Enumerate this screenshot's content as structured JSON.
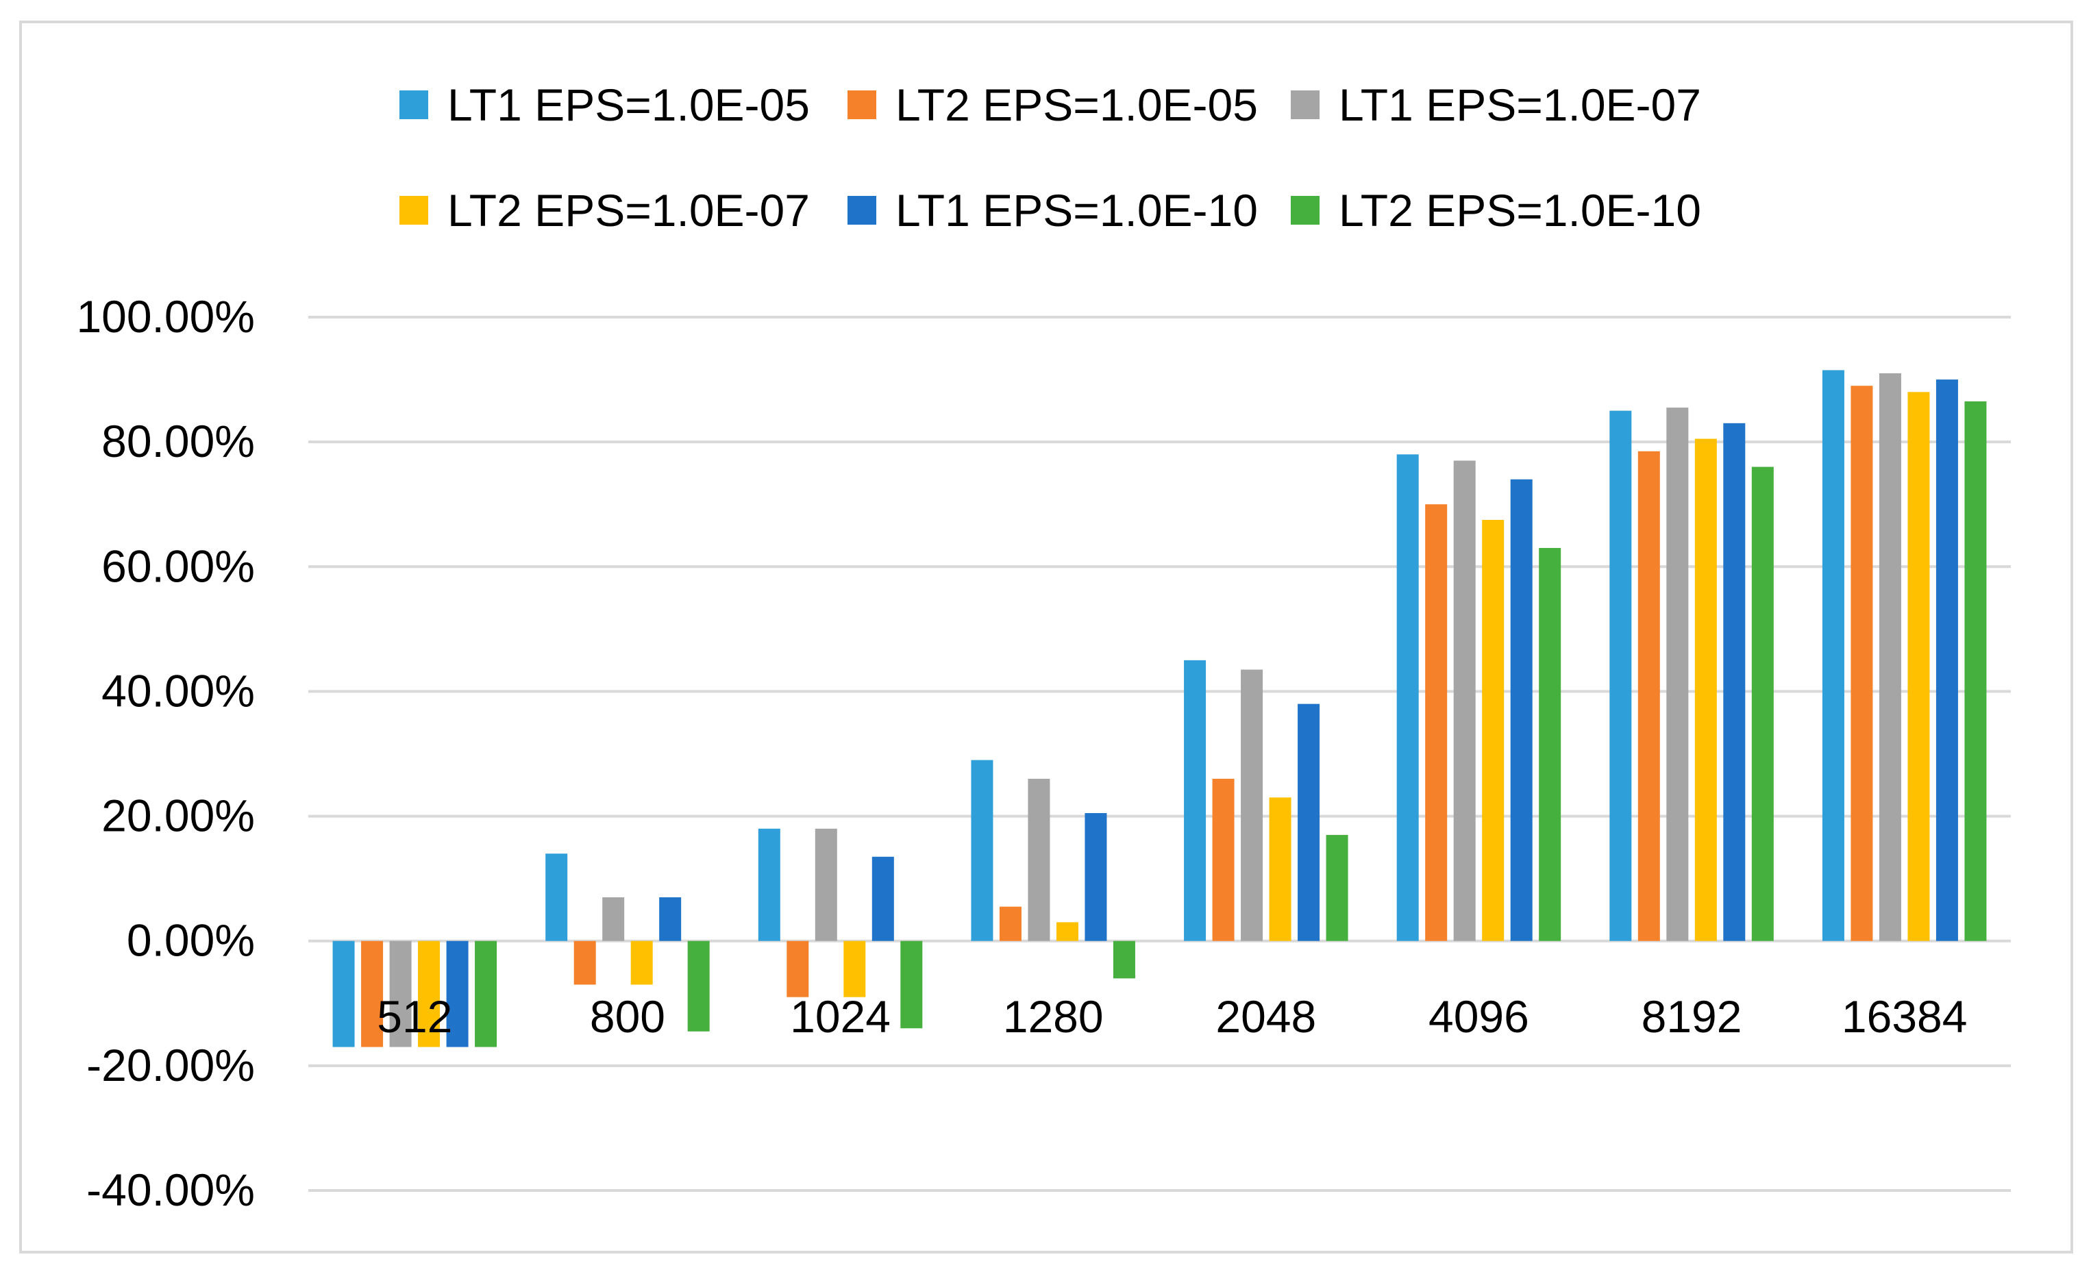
{
  "chart_data": {
    "type": "bar",
    "title": "",
    "xlabel": "",
    "ylabel": "",
    "ylim": [
      -0.4,
      1.0
    ],
    "ytick_values": [
      -0.4,
      -0.2,
      0.0,
      0.2,
      0.4,
      0.6,
      0.8,
      1.0
    ],
    "ytick_labels": [
      "-40.00%",
      "-20.00%",
      "0.00%",
      "20.00%",
      "40.00%",
      "60.00%",
      "80.00%",
      "100.00%"
    ],
    "grid": true,
    "legend_position": "top",
    "categories": [
      "512",
      "800",
      "1024",
      "1280",
      "2048",
      "4096",
      "8192",
      "16384"
    ],
    "series": [
      {
        "name": "LT1 EPS=1.0E-05",
        "color": "#2e9fd9",
        "values": [
          -0.17,
          0.14,
          0.18,
          0.29,
          0.45,
          0.78,
          0.85,
          0.915
        ]
      },
      {
        "name": "LT2 EPS=1.0E-05",
        "color": "#f5822a",
        "values": [
          -0.17,
          -0.07,
          -0.09,
          0.055,
          0.26,
          0.7,
          0.785,
          0.89
        ]
      },
      {
        "name": "LT1 EPS=1.0E-07",
        "color": "#a5a5a5",
        "values": [
          -0.17,
          0.07,
          0.18,
          0.26,
          0.435,
          0.77,
          0.855,
          0.91
        ]
      },
      {
        "name": "LT2 EPS=1.0E-07",
        "color": "#ffc000",
        "values": [
          -0.17,
          -0.07,
          -0.09,
          0.03,
          0.23,
          0.675,
          0.805,
          0.88
        ]
      },
      {
        "name": "LT1 EPS=1.0E-10",
        "color": "#1f73c8",
        "values": [
          -0.17,
          0.07,
          0.135,
          0.205,
          0.38,
          0.74,
          0.83,
          0.9
        ]
      },
      {
        "name": "LT2 EPS=1.0E-10",
        "color": "#45b03d",
        "values": [
          -0.17,
          -0.145,
          -0.14,
          -0.06,
          0.17,
          0.63,
          0.76,
          0.865
        ]
      }
    ]
  },
  "colors": {
    "gridline": "#d9d9d9",
    "frame_border": "#d9d9d9",
    "text": "#000000"
  }
}
